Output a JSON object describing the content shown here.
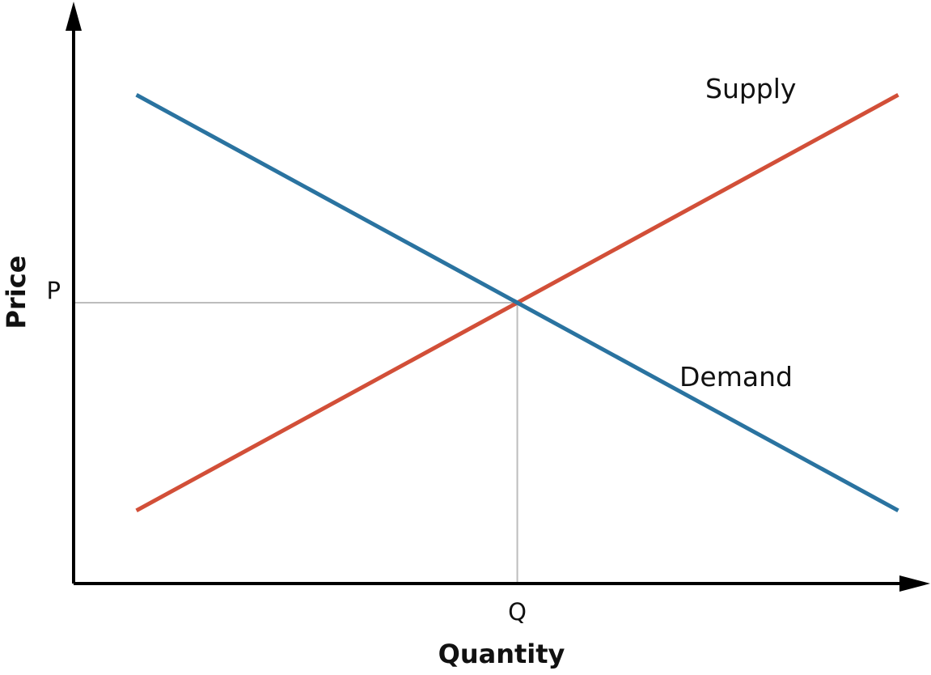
{
  "chart_data": {
    "type": "line",
    "title": "",
    "xlabel": "Quantity",
    "ylabel": "Price",
    "x_tick_labels": [
      "Q"
    ],
    "y_tick_labels": [
      "P"
    ],
    "xlim": [
      0,
      1
    ],
    "ylim": [
      0,
      1
    ],
    "grid": false,
    "legend": "none",
    "series": [
      {
        "name": "Supply",
        "color": "#D24F38",
        "points": [
          {
            "x": 0.075,
            "y": 0.13
          },
          {
            "x": 0.985,
            "y": 0.87
          }
        ]
      },
      {
        "name": "Demand",
        "color": "#2A73A0",
        "points": [
          {
            "x": 0.075,
            "y": 0.87
          },
          {
            "x": 0.985,
            "y": 0.13
          }
        ]
      }
    ],
    "equilibrium": {
      "x": 0.53,
      "y": 0.5
    },
    "colors": {
      "axis": "#000000",
      "guide": "#BDBDBD",
      "supply": "#D24F38",
      "demand": "#2A73A0"
    }
  }
}
